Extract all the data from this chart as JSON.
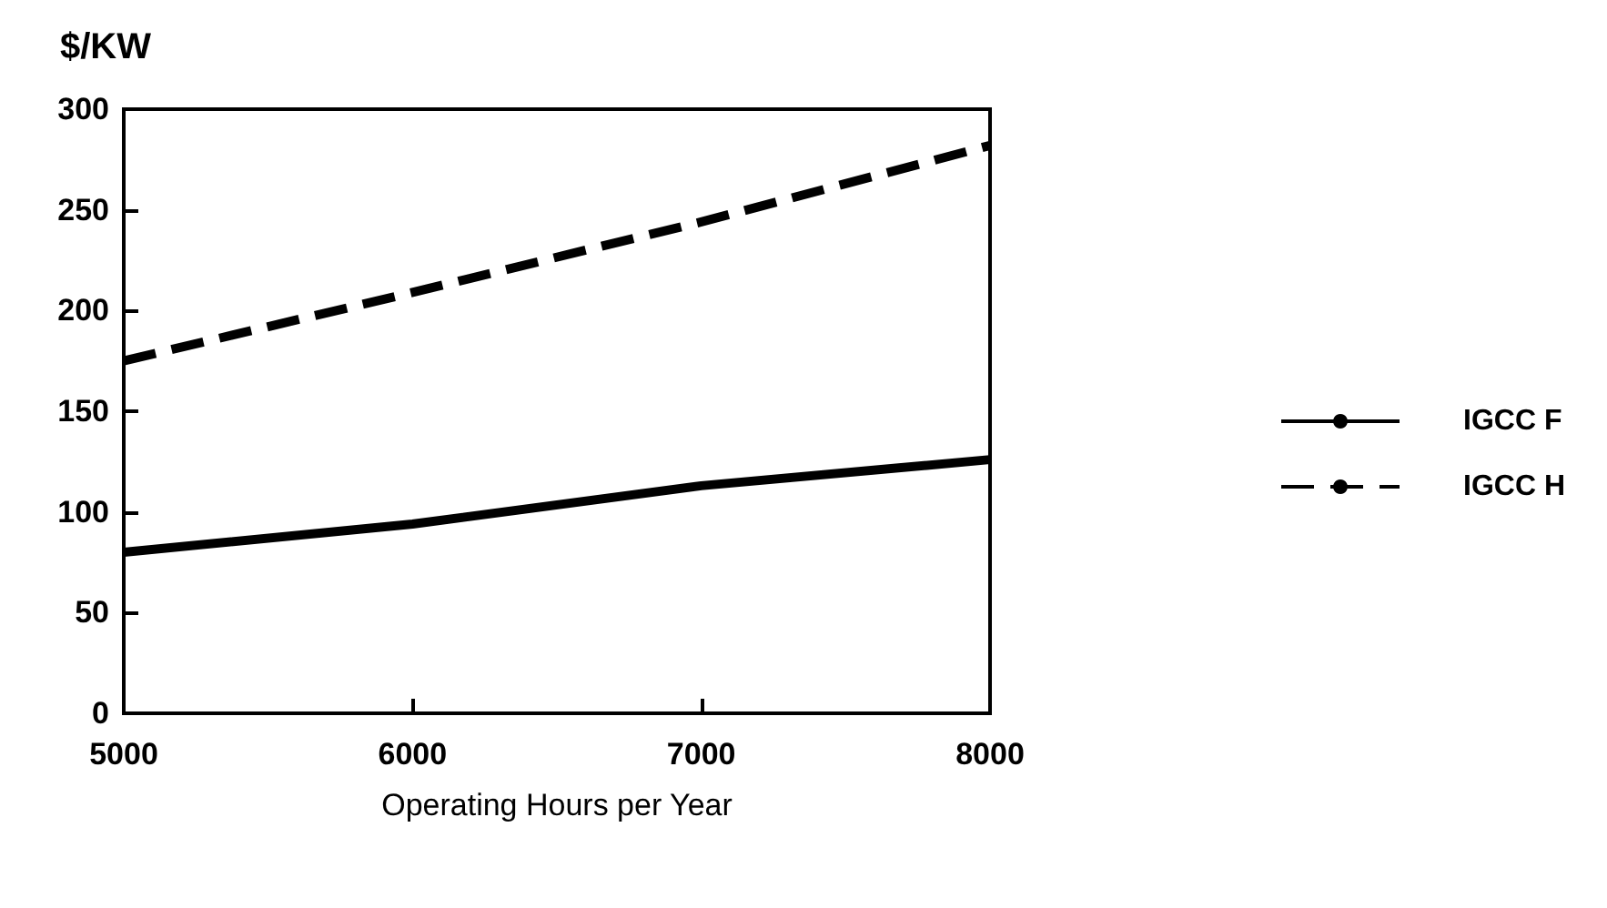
{
  "chart_data": {
    "type": "line",
    "ylabel": "$/KW",
    "xlabel": "Operating Hours per Year",
    "x": [
      5000,
      6000,
      7000,
      8000
    ],
    "series": [
      {
        "name": "IGCC F",
        "color": "#000000",
        "line_style": "solid",
        "values": [
          80,
          94,
          113,
          126
        ]
      },
      {
        "name": "IGCC H",
        "color": "#000000",
        "line_style": "dashed",
        "values": [
          175,
          209,
          244,
          282
        ]
      }
    ],
    "xlim": [
      5000,
      8000
    ],
    "xticks": [
      5000,
      6000,
      7000,
      8000
    ],
    "ylim": [
      0,
      300
    ],
    "yticks": [
      0,
      50,
      100,
      150,
      200,
      250,
      300
    ],
    "grid": false,
    "legend": "right",
    "marker": "none"
  }
}
